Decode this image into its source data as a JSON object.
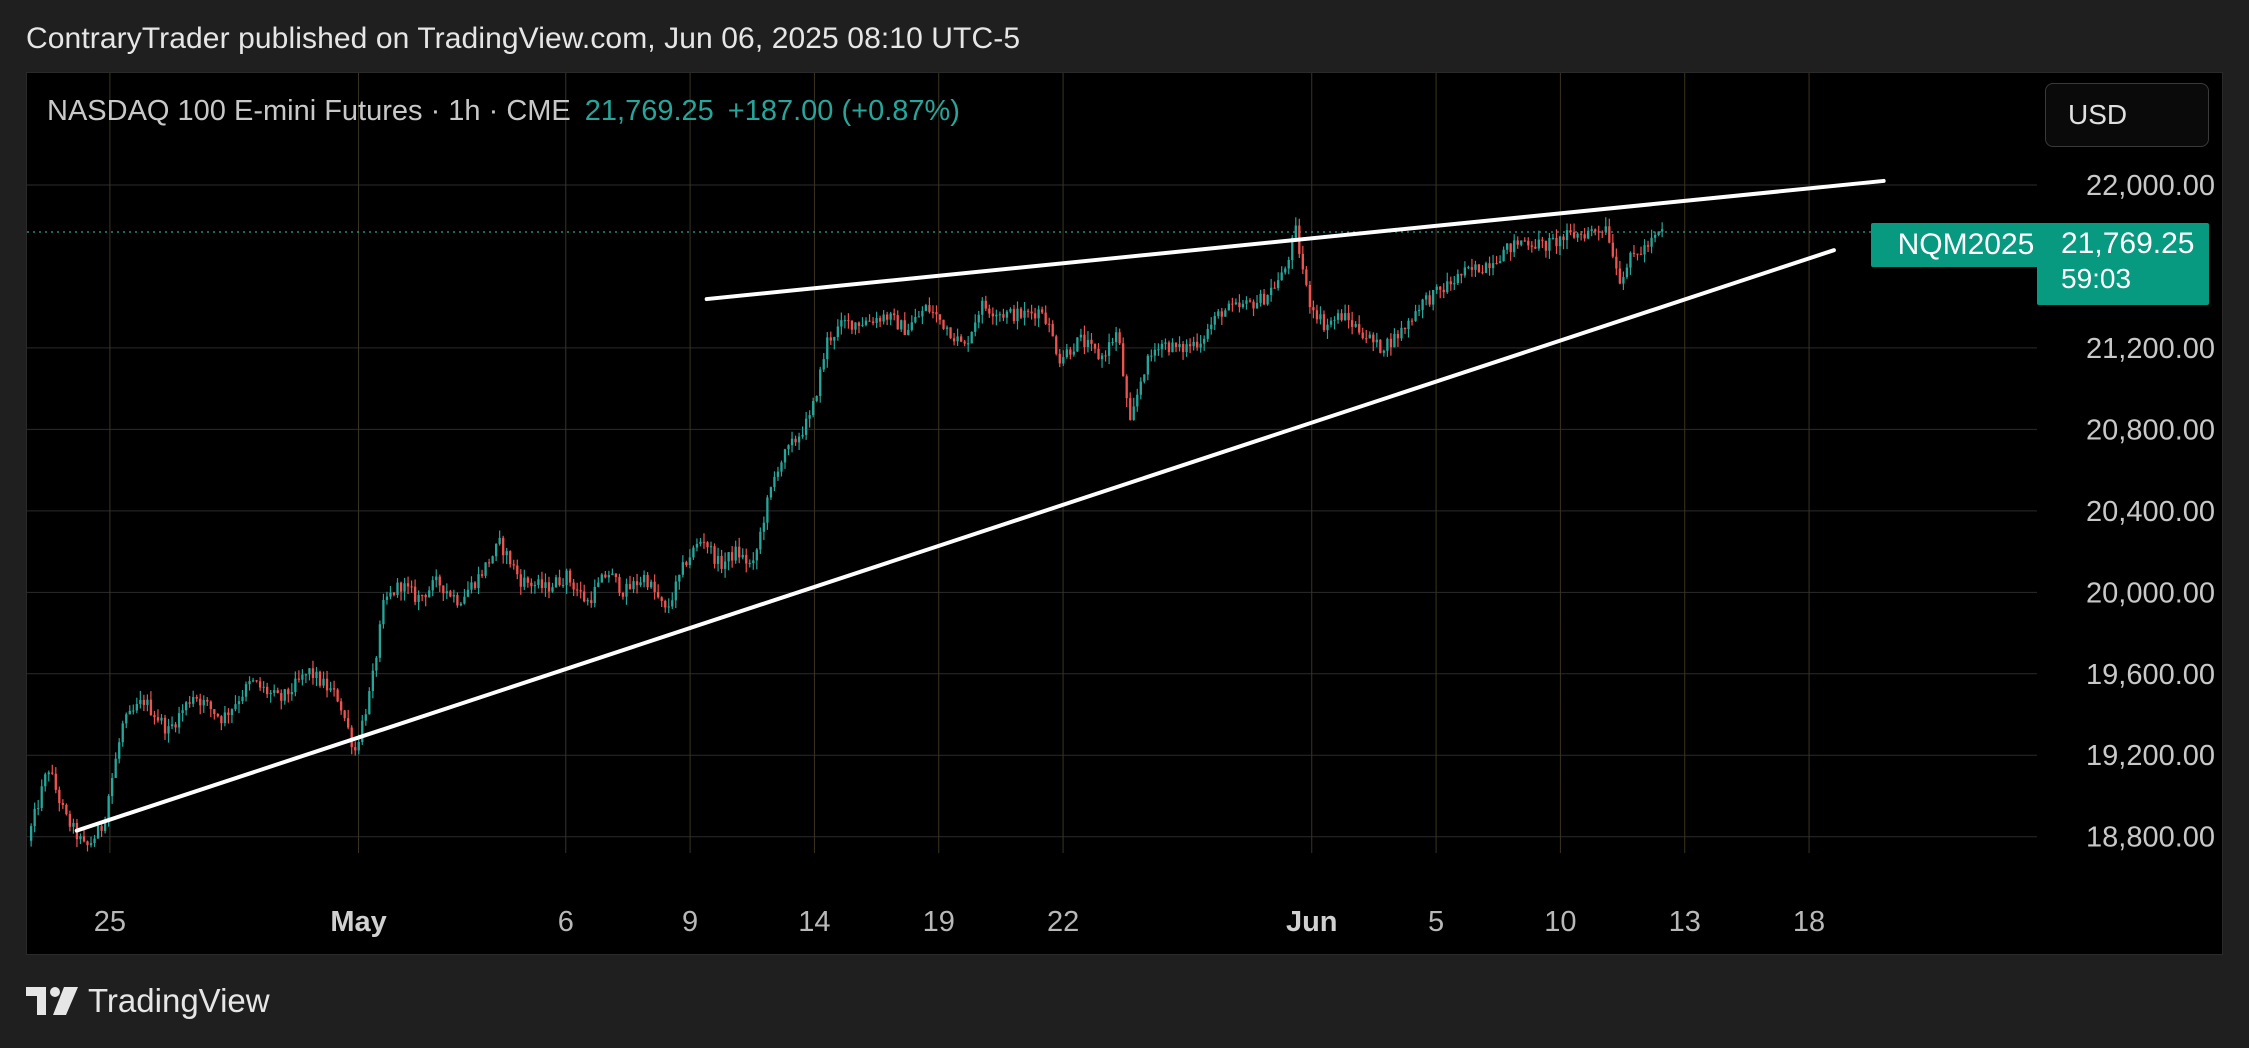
{
  "attribution": "ContraryTrader published on TradingView.com, Jun 06, 2025 08:10 UTC-5",
  "legend": {
    "symbol": "NASDAQ 100 E-mini Futures · 1h · CME",
    "last_price": "21,769.25",
    "change": "+187.00 (+0.87%)"
  },
  "currency_button": "USD",
  "ticker_badge": "NQM2025",
  "price_badge": {
    "price": "21,769.25",
    "countdown": "59:03"
  },
  "footer": {
    "brand": "TradingView"
  },
  "colors": {
    "up": "#26a69a",
    "down": "#ef5350",
    "badge": "#089981",
    "grid": "#2b2b2b",
    "date_grid": "#3b3420",
    "trendline": "#ffffff"
  },
  "chart_data": {
    "type": "candlestick",
    "title": "NASDAQ 100 E-mini Futures",
    "timeframe": "1h",
    "x_ticks": [
      {
        "label": "25",
        "bold": false,
        "t": 4
      },
      {
        "label": "May",
        "bold": true,
        "t": 10
      },
      {
        "label": "6",
        "bold": false,
        "t": 15
      },
      {
        "label": "9",
        "bold": false,
        "t": 18
      },
      {
        "label": "14",
        "bold": false,
        "t": 21
      },
      {
        "label": "19",
        "bold": false,
        "t": 24
      },
      {
        "label": "22",
        "bold": false,
        "t": 27
      },
      {
        "label": "Jun",
        "bold": true,
        "t": 33
      },
      {
        "label": "5",
        "bold": false,
        "t": 36
      },
      {
        "label": "10",
        "bold": false,
        "t": 39
      },
      {
        "label": "13",
        "bold": false,
        "t": 42
      },
      {
        "label": "18",
        "bold": false,
        "t": 45
      }
    ],
    "y_ticks": [
      {
        "label": "22,000.00",
        "value": 22000
      },
      {
        "label": "21,200.00",
        "value": 21200
      },
      {
        "label": "20,800.00",
        "value": 20800
      },
      {
        "label": "20,400.00",
        "value": 20400
      },
      {
        "label": "20,000.00",
        "value": 20000
      },
      {
        "label": "19,600.00",
        "value": 19600
      },
      {
        "label": "19,200.00",
        "value": 19200
      },
      {
        "label": "18,800.00",
        "value": 18800
      }
    ],
    "ylim": [
      18720,
      22550
    ],
    "xlim": [
      2,
      50.5
    ],
    "last_price": 21769.25,
    "price_path": [
      [
        2.1,
        18780
      ],
      [
        2.6,
        19140
      ],
      [
        3.0,
        18900
      ],
      [
        3.5,
        18740
      ],
      [
        3.9,
        18850
      ],
      [
        4.4,
        19350
      ],
      [
        4.9,
        19470
      ],
      [
        5.5,
        19320
      ],
      [
        6.1,
        19500
      ],
      [
        6.8,
        19380
      ],
      [
        7.5,
        19560
      ],
      [
        8.2,
        19470
      ],
      [
        8.9,
        19610
      ],
      [
        9.6,
        19480
      ],
      [
        10.0,
        19220
      ],
      [
        10.4,
        19540
      ],
      [
        10.7,
        19950
      ],
      [
        11.1,
        20040
      ],
      [
        11.5,
        19970
      ],
      [
        12.0,
        20050
      ],
      [
        12.5,
        19960
      ],
      [
        13.0,
        20080
      ],
      [
        13.5,
        20240
      ],
      [
        14.0,
        20060
      ],
      [
        14.6,
        20020
      ],
      [
        15.1,
        20080
      ],
      [
        15.6,
        19950
      ],
      [
        16.1,
        20100
      ],
      [
        16.5,
        20000
      ],
      [
        17.0,
        20080
      ],
      [
        17.5,
        19900
      ],
      [
        18.0,
        20160
      ],
      [
        18.4,
        20270
      ],
      [
        18.8,
        20130
      ],
      [
        19.2,
        20200
      ],
      [
        19.6,
        20120
      ],
      [
        19.9,
        20400
      ],
      [
        20.2,
        20620
      ],
      [
        20.6,
        20740
      ],
      [
        21.0,
        20860
      ],
      [
        21.4,
        21240
      ],
      [
        21.8,
        21320
      ],
      [
        22.3,
        21330
      ],
      [
        22.8,
        21360
      ],
      [
        23.3,
        21290
      ],
      [
        23.8,
        21400
      ],
      [
        24.3,
        21300
      ],
      [
        24.7,
        21200
      ],
      [
        25.1,
        21410
      ],
      [
        25.6,
        21370
      ],
      [
        26.1,
        21360
      ],
      [
        26.6,
        21390
      ],
      [
        27.0,
        21150
      ],
      [
        27.5,
        21240
      ],
      [
        28.0,
        21150
      ],
      [
        28.4,
        21280
      ],
      [
        28.7,
        20810
      ],
      [
        29.0,
        21080
      ],
      [
        29.4,
        21230
      ],
      [
        29.9,
        21190
      ],
      [
        30.4,
        21240
      ],
      [
        30.9,
        21380
      ],
      [
        31.4,
        21400
      ],
      [
        31.9,
        21440
      ],
      [
        32.4,
        21560
      ],
      [
        32.7,
        21770
      ],
      [
        33.0,
        21440
      ],
      [
        33.4,
        21310
      ],
      [
        33.8,
        21360
      ],
      [
        34.3,
        21280
      ],
      [
        34.7,
        21200
      ],
      [
        35.1,
        21250
      ],
      [
        35.4,
        21320
      ],
      [
        35.7,
        21420
      ],
      [
        36.2,
        21480
      ],
      [
        36.7,
        21560
      ],
      [
        37.2,
        21600
      ],
      [
        37.7,
        21670
      ],
      [
        38.2,
        21730
      ],
      [
        38.7,
        21700
      ],
      [
        39.3,
        21750
      ],
      [
        39.8,
        21770
      ],
      [
        40.2,
        21800
      ],
      [
        40.5,
        21540
      ],
      [
        40.8,
        21640
      ],
      [
        41.3,
        21720
      ],
      [
        41.5,
        21769
      ]
    ],
    "trendlines": [
      {
        "name": "upper-trendline",
        "from": [
          18.4,
          21440
        ],
        "to": [
          46.8,
          22020
        ]
      },
      {
        "name": "lower-trendline",
        "from": [
          3.2,
          18830
        ],
        "to": [
          45.6,
          21680
        ]
      }
    ]
  }
}
